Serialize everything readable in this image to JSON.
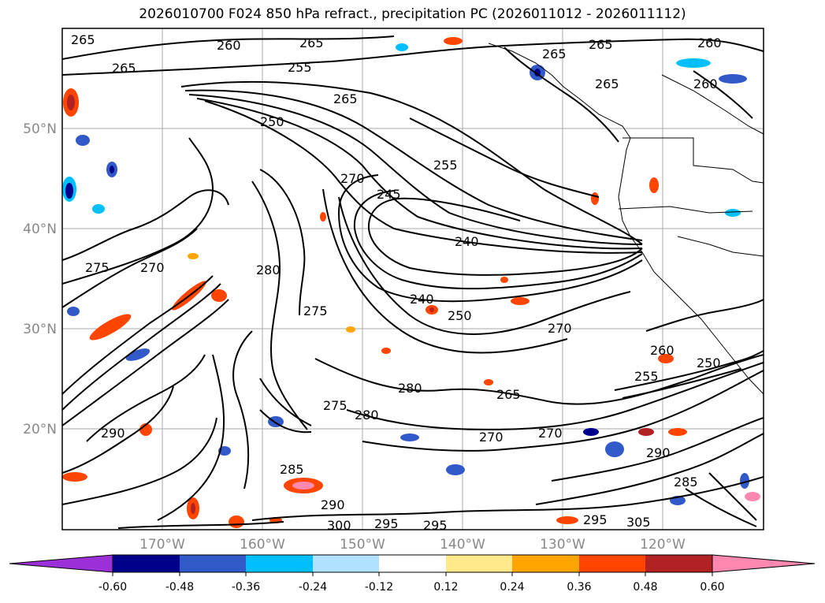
{
  "title": "2026010700 F024 850 hPa refract., precipitation PC (2026011012 - 2026011112)",
  "lat_labels": [
    "50°N",
    "40°N",
    "30°N",
    "20°N"
  ],
  "lon_labels": [
    "170°W",
    "160°W",
    "150°W",
    "140°W",
    "130°W",
    "120°W"
  ],
  "contour_labels": [
    "265",
    "260",
    "265",
    "255",
    "265",
    "265",
    "265",
    "260",
    "265",
    "260",
    "250",
    "265",
    "255",
    "245",
    "270",
    "240",
    "275",
    "280",
    "270",
    "275",
    "240",
    "250",
    "270",
    "280",
    "275",
    "280",
    "265",
    "270",
    "270",
    "290",
    "285",
    "290",
    "300",
    "295",
    "295",
    "305",
    "295",
    "290",
    "285",
    "260",
    "250",
    "255"
  ],
  "colorbar": {
    "ticks": [
      "-0.60",
      "-0.48",
      "-0.36",
      "-0.24",
      "-0.12",
      "0.12",
      "0.24",
      "0.36",
      "0.48",
      "0.60"
    ],
    "colors": [
      "#9b30d9",
      "#00008b",
      "#3159c8",
      "#00bfff",
      "#b0e2ff",
      "#ffffff",
      "#ffe98a",
      "#ffa500",
      "#ff4500",
      "#b22222",
      "#ff88b0"
    ]
  }
}
